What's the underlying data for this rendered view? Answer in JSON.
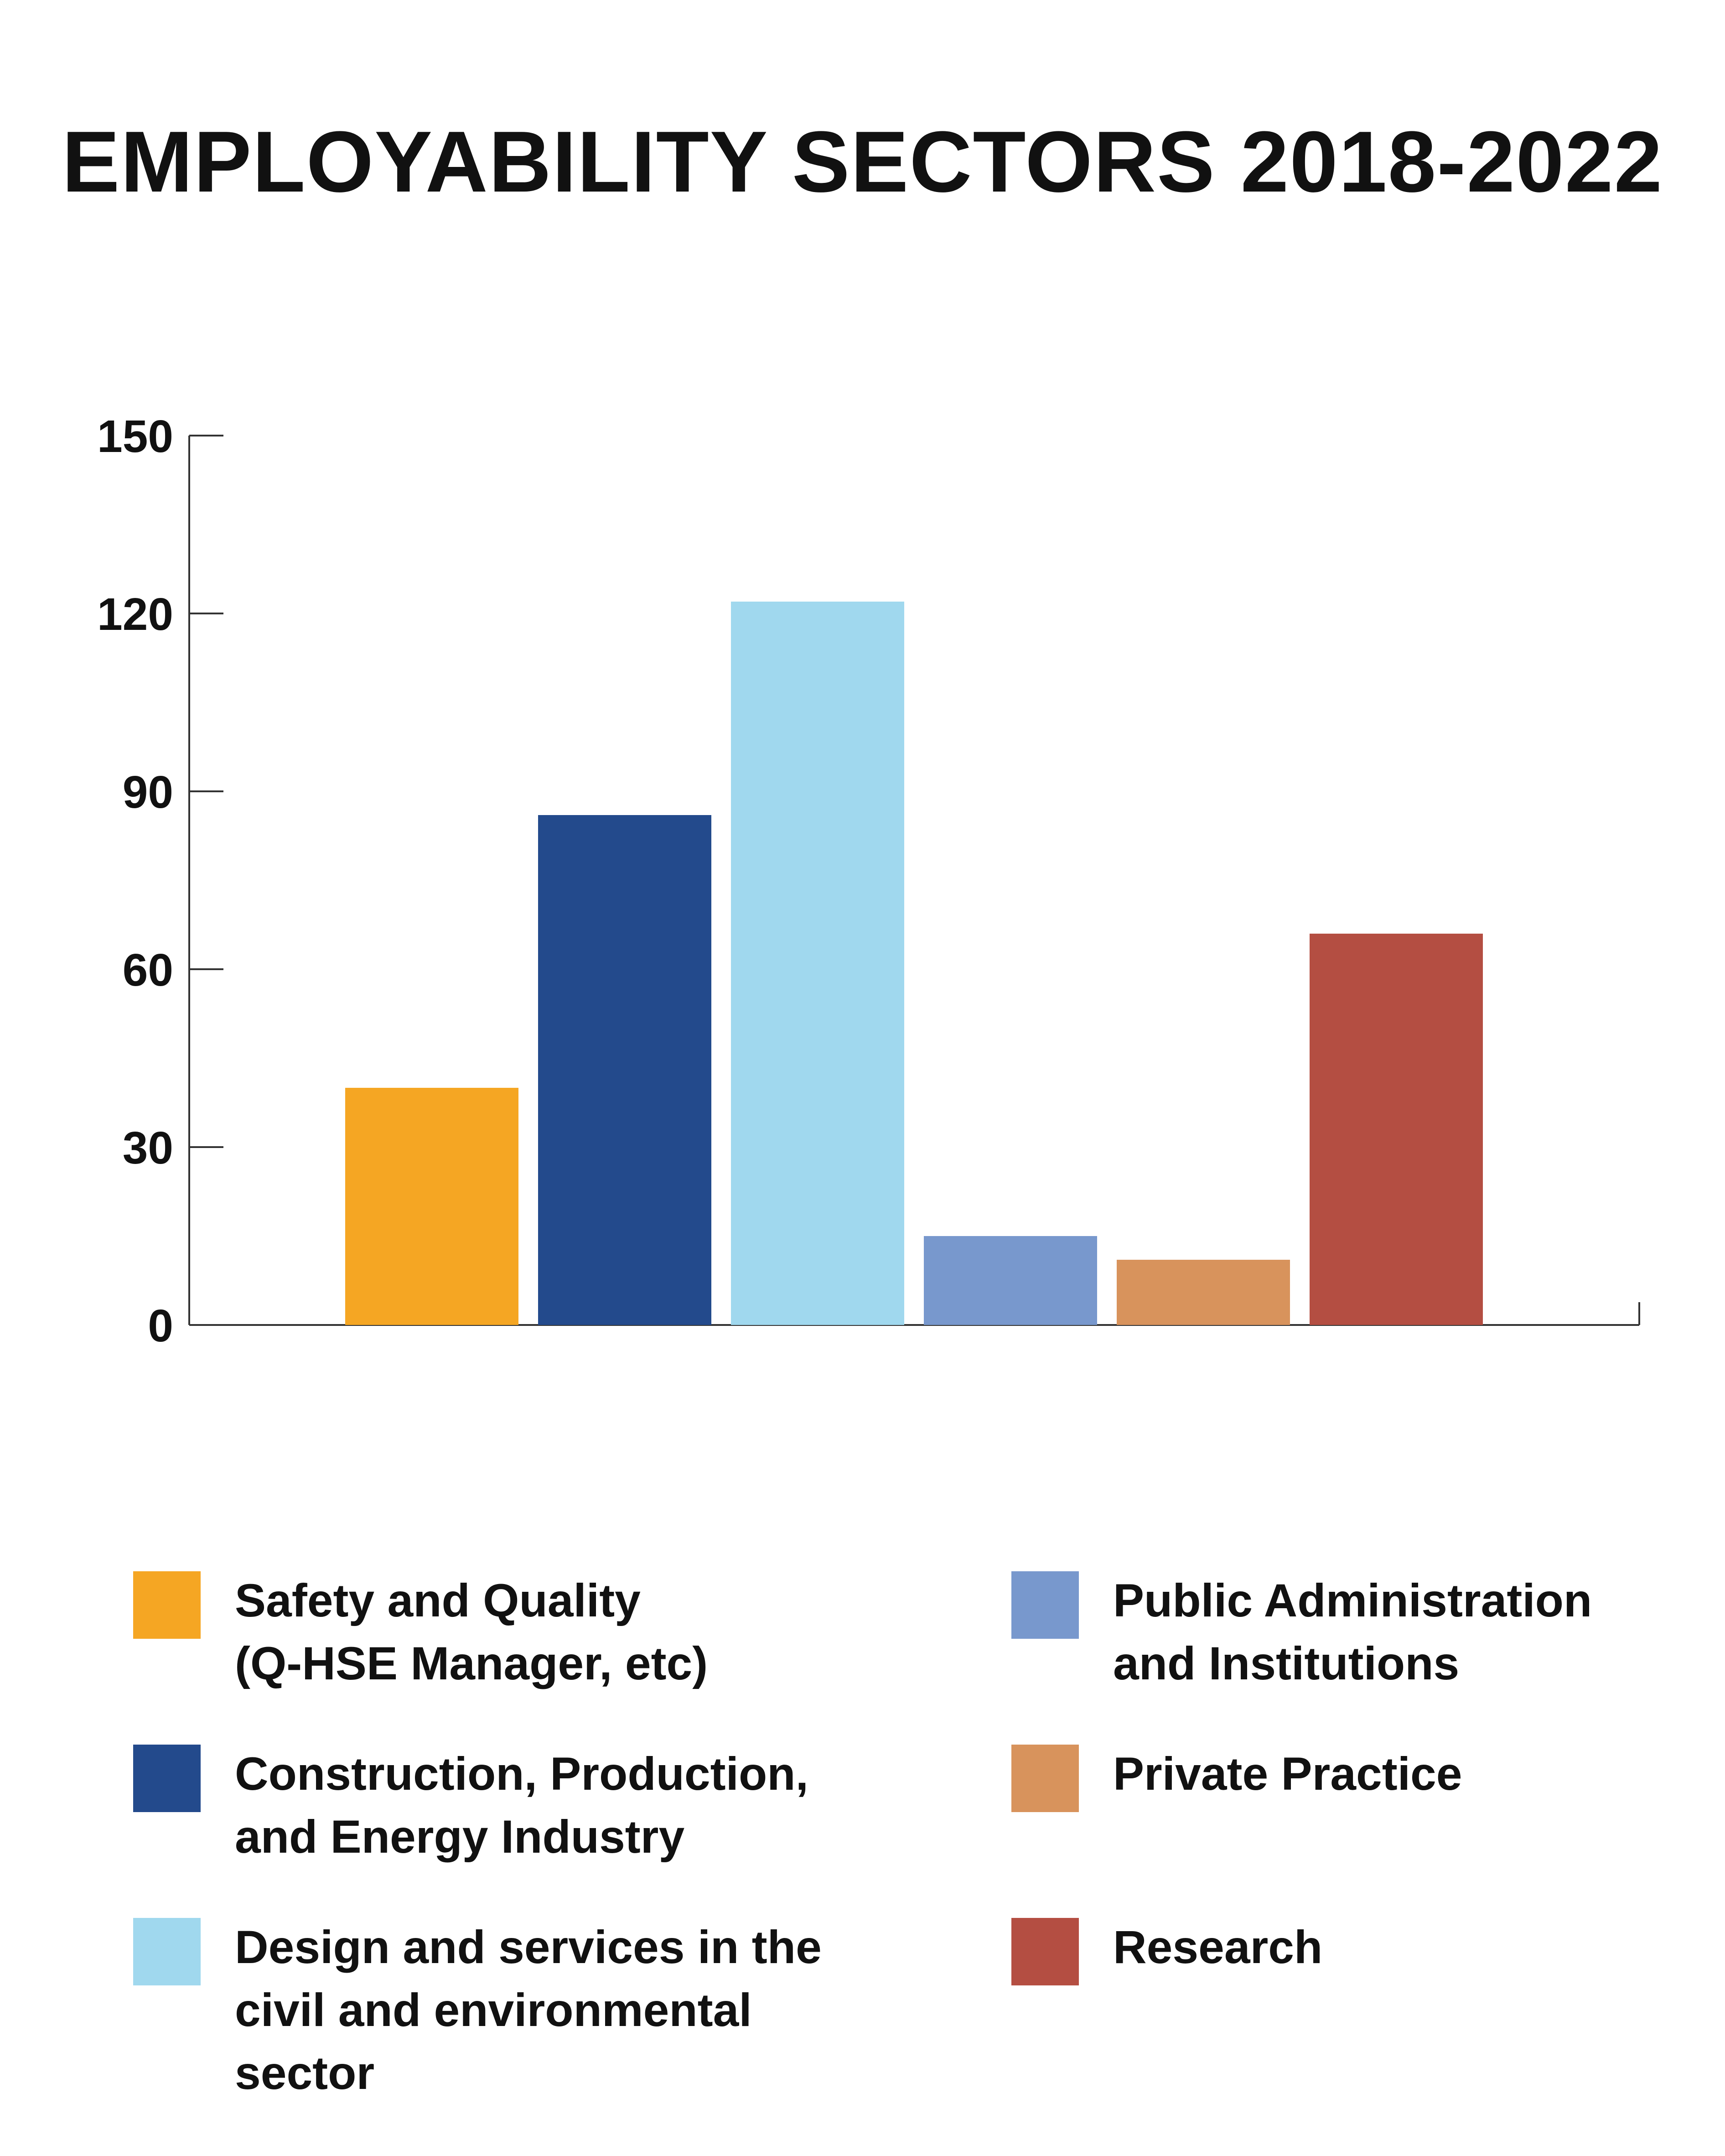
{
  "chart_data": {
    "type": "bar",
    "title": "EMPLOYABILITY SECTORS 2018-2022",
    "xlabel": "",
    "ylabel": "",
    "ylim": [
      0,
      150
    ],
    "yticks": [
      0,
      30,
      60,
      90,
      120,
      150
    ],
    "grid": false,
    "legend_position": "bottom",
    "categories": [
      "Safety and Quality (Q-HSE Manager, etc)",
      "Construction, Production, and Energy Industry",
      "Design and services in the civil and environmental sector",
      "Public Administration and Institutions",
      "Private Practice",
      "Research"
    ],
    "values": [
      40,
      86,
      122,
      15,
      11,
      66
    ],
    "colors": [
      "#f5a623",
      "#234a8c",
      "#a0d8ee",
      "#7898cd",
      "#d8935c",
      "#b44e42"
    ],
    "legend": [
      {
        "line1": "Safety and Quality",
        "line2": "(Q-HSE Manager, etc)"
      },
      {
        "line1": "Construction, Production,",
        "line2": "and Energy Industry"
      },
      {
        "line1": "Design and services in the",
        "line2": "civil and environmental sector"
      },
      {
        "line1": "Public Administration",
        "line2": "and Institutions"
      },
      {
        "line1": "Private Practice",
        "line2": ""
      },
      {
        "line1": "Research",
        "line2": ""
      }
    ]
  }
}
